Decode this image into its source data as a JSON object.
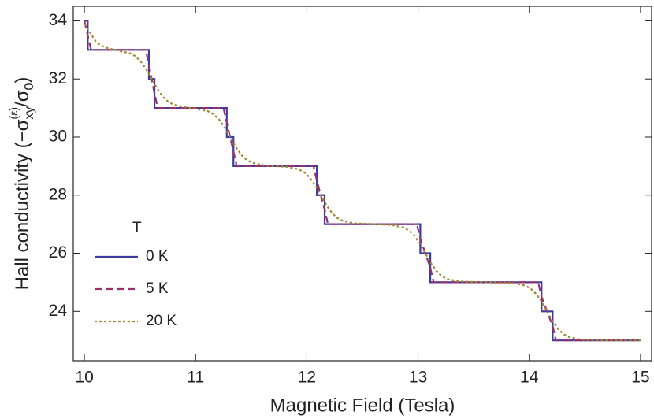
{
  "chart_data": {
    "type": "line",
    "x_label": "Magnetic Field (Tesla)",
    "y_label_parts": [
      "Hall conductivity (−σ",
      "xy",
      "(ε)",
      "/σ",
      "0",
      ")"
    ],
    "legend_title": "T",
    "xlim": [
      9.9,
      15.1
    ],
    "xticks": [
      10,
      11,
      12,
      13,
      14,
      15
    ],
    "ylim": [
      22.3,
      34.5
    ],
    "yticks": [
      24,
      26,
      28,
      30,
      32,
      34
    ],
    "legend": "lower left",
    "series": [
      {
        "name": "0 K",
        "color": "#3b3ba0",
        "dash": "solid",
        "x": [
          10.0,
          10.03,
          10.03,
          10.58,
          10.58,
          10.63,
          10.63,
          11.28,
          11.28,
          11.34,
          11.34,
          12.09,
          12.09,
          12.16,
          12.16,
          13.02,
          13.02,
          13.11,
          13.11,
          14.11,
          14.11,
          14.21,
          14.21,
          15.0
        ],
        "values": [
          34,
          34,
          33,
          33,
          32,
          32,
          31,
          31,
          30,
          30,
          29,
          29,
          28,
          28,
          27,
          27,
          26,
          26,
          25,
          25,
          24,
          24,
          23,
          23
        ]
      },
      {
        "name": "5 K",
        "color": "#9a2f6e",
        "dash": "dashed",
        "x": [
          10.0,
          10.03,
          10.06,
          10.55,
          10.58,
          10.605,
          10.63,
          10.66,
          11.25,
          11.28,
          11.31,
          11.34,
          11.37,
          12.06,
          12.09,
          12.125,
          12.16,
          12.19,
          12.99,
          13.02,
          13.065,
          13.11,
          13.14,
          14.08,
          14.11,
          14.16,
          14.21,
          14.24,
          15.0
        ],
        "values": [
          34,
          33.5,
          33,
          33,
          32.5,
          32,
          31.5,
          31,
          31,
          30.5,
          30,
          29.5,
          29,
          29,
          28.5,
          28,
          27.5,
          27,
          27,
          26.5,
          26,
          25.5,
          25,
          25,
          24.5,
          24,
          23.5,
          23,
          23
        ]
      },
      {
        "name": "20 K",
        "color": "#a08a2e",
        "dash": "dotted",
        "x": [
          10.0,
          10.05,
          10.1,
          10.15,
          10.2,
          10.305,
          10.405,
          10.455,
          10.505,
          10.555,
          10.605,
          10.655,
          10.705,
          10.755,
          10.805,
          10.905,
          11.01,
          11.11,
          11.16,
          11.21,
          11.26,
          11.31,
          11.36,
          11.41,
          11.46,
          11.51,
          11.61,
          11.7,
          11.825,
          11.925,
          11.975,
          12.025,
          12.075,
          12.125,
          12.175,
          12.225,
          12.275,
          12.325,
          12.425,
          12.6,
          12.765,
          12.865,
          12.915,
          12.965,
          13.015,
          13.065,
          13.115,
          13.165,
          13.215,
          13.265,
          13.365,
          13.6,
          13.86,
          13.96,
          14.01,
          14.06,
          14.11,
          14.16,
          14.21,
          14.26,
          14.31,
          14.36,
          14.46,
          14.7,
          15.0
        ],
        "values": [
          33.9,
          33.6,
          33.3,
          33.15,
          33.07,
          32.97,
          32.89,
          32.79,
          32.61,
          32.34,
          32,
          31.66,
          31.39,
          31.21,
          31.11,
          31.03,
          30.97,
          30.89,
          30.79,
          30.61,
          30.34,
          30,
          29.66,
          29.39,
          29.21,
          29.11,
          29.03,
          29.0,
          28.97,
          28.89,
          28.79,
          28.61,
          28.34,
          28,
          27.66,
          27.39,
          27.21,
          27.11,
          27.03,
          27.0,
          26.97,
          26.89,
          26.79,
          26.61,
          26.34,
          26,
          25.66,
          25.39,
          25.21,
          25.11,
          25.03,
          25.0,
          24.97,
          24.89,
          24.79,
          24.61,
          24.34,
          24,
          23.66,
          23.39,
          23.21,
          23.11,
          23.03,
          23.0,
          23.0
        ]
      }
    ]
  }
}
